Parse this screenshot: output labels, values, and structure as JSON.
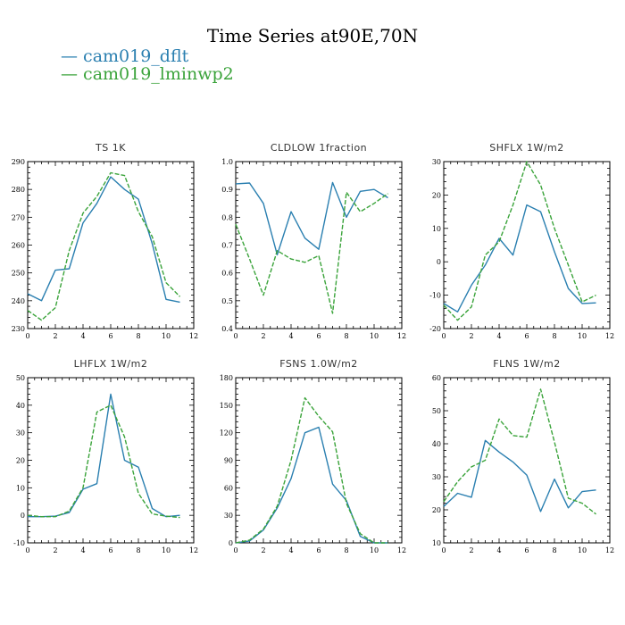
{
  "title": "Time Series at90E,70N",
  "colors": {
    "series1": "#2a7fb0",
    "series2": "#3aa33a"
  },
  "legend": [
    {
      "name": "cam019_dflt",
      "style": "solid"
    },
    {
      "name": "cam019_lminwp2",
      "style": "dashed"
    }
  ],
  "chart_data": [
    {
      "type": "line",
      "title": "TS   1K",
      "x": [
        0,
        1,
        2,
        3,
        4,
        5,
        6,
        7,
        8,
        9,
        10,
        11
      ],
      "xlim": [
        0,
        12
      ],
      "xticks": [
        0,
        2,
        4,
        6,
        8,
        10,
        12
      ],
      "ylim": [
        230,
        290
      ],
      "yticks": [
        230,
        240,
        250,
        260,
        270,
        280,
        290
      ],
      "series": [
        {
          "name": "cam019_dflt",
          "values": [
            242.5,
            240,
            251,
            251.5,
            268,
            275,
            284.5,
            280,
            276.5,
            260.5,
            240.5,
            239.5
          ]
        },
        {
          "name": "cam019_lminwp2",
          "values": [
            236.5,
            233,
            237.5,
            258,
            271.5,
            277.5,
            286,
            285,
            272,
            263,
            246.5,
            241.5
          ]
        }
      ]
    },
    {
      "type": "line",
      "title": "CLDLOW   1fraction",
      "x": [
        0,
        1,
        2,
        3,
        4,
        5,
        6,
        7,
        8,
        9,
        10,
        11
      ],
      "xlim": [
        0,
        12
      ],
      "xticks": [
        0,
        2,
        4,
        6,
        8,
        10,
        12
      ],
      "ylim": [
        0.4,
        1.0
      ],
      "yticks": [
        0.4,
        0.5,
        0.6,
        0.7,
        0.8,
        0.9,
        1.0
      ],
      "series": [
        {
          "name": "cam019_dflt",
          "values": [
            0.92,
            0.923,
            0.85,
            0.665,
            0.82,
            0.725,
            0.685,
            0.925,
            0.8,
            0.893,
            0.9,
            0.87
          ]
        },
        {
          "name": "cam019_lminwp2",
          "values": [
            0.775,
            0.65,
            0.52,
            0.68,
            0.65,
            0.638,
            0.662,
            0.455,
            0.89,
            0.82,
            0.85,
            0.885
          ]
        }
      ]
    },
    {
      "type": "line",
      "title": "SHFLX   1W/m2",
      "x": [
        0,
        1,
        2,
        3,
        4,
        5,
        6,
        7,
        8,
        9,
        10,
        11
      ],
      "xlim": [
        0,
        12
      ],
      "xticks": [
        0,
        2,
        4,
        6,
        8,
        10,
        12
      ],
      "ylim": [
        -20,
        30
      ],
      "yticks": [
        -20,
        -10,
        0,
        10,
        20,
        30
      ],
      "series": [
        {
          "name": "cam019_dflt",
          "values": [
            -12.5,
            -15,
            -7,
            -1,
            7,
            2,
            17,
            15,
            3,
            -8,
            -12.5,
            -12.3
          ]
        },
        {
          "name": "cam019_lminwp2",
          "values": [
            -13,
            -17.5,
            -13.5,
            2,
            6,
            17,
            30,
            23,
            10,
            -1,
            -12,
            -10
          ]
        }
      ]
    },
    {
      "type": "line",
      "title": "LHFLX   1W/m2",
      "x": [
        0,
        1,
        2,
        3,
        4,
        5,
        6,
        7,
        8,
        9,
        10,
        11
      ],
      "xlim": [
        0,
        12
      ],
      "xticks": [
        0,
        2,
        4,
        6,
        8,
        10,
        12
      ],
      "ylim": [
        -10,
        50
      ],
      "yticks": [
        -10,
        0,
        10,
        20,
        30,
        40,
        50
      ],
      "series": [
        {
          "name": "cam019_dflt",
          "values": [
            -0.5,
            -0.5,
            -0.3,
            1,
            9.5,
            11.5,
            44,
            20,
            17.5,
            2.5,
            -0.5,
            0
          ]
        },
        {
          "name": "cam019_lminwp2",
          "values": [
            0,
            -0.5,
            -0.5,
            1.5,
            10,
            37.5,
            40,
            28.5,
            8,
            0.5,
            -0.3,
            -0.8
          ]
        }
      ]
    },
    {
      "type": "line",
      "title": "FSNS   1.0W/m2",
      "x": [
        0,
        1,
        2,
        3,
        4,
        5,
        6,
        7,
        8,
        9,
        10,
        11
      ],
      "xlim": [
        0,
        12
      ],
      "xticks": [
        0,
        2,
        4,
        6,
        8,
        10,
        12
      ],
      "ylim": [
        0,
        180
      ],
      "yticks": [
        0,
        30,
        60,
        90,
        120,
        150,
        180
      ],
      "series": [
        {
          "name": "cam019_dflt",
          "values": [
            0,
            2,
            14,
            38,
            70,
            120,
            126,
            64,
            46,
            7,
            0,
            0
          ]
        },
        {
          "name": "cam019_lminwp2",
          "values": [
            0,
            3,
            15,
            40,
            90,
            158,
            138,
            121,
            43,
            10,
            0,
            0
          ]
        }
      ]
    },
    {
      "type": "line",
      "title": "FLNS   1W/m2",
      "x": [
        0,
        1,
        2,
        3,
        4,
        5,
        6,
        7,
        8,
        9,
        10,
        11
      ],
      "xlim": [
        0,
        12
      ],
      "xticks": [
        0,
        2,
        4,
        6,
        8,
        10,
        12
      ],
      "ylim": [
        10,
        60
      ],
      "yticks": [
        10,
        20,
        30,
        40,
        50,
        60
      ],
      "series": [
        {
          "name": "cam019_dflt",
          "values": [
            21,
            25,
            23.8,
            41,
            37.5,
            34.5,
            30.5,
            19.5,
            29.3,
            20.6,
            25.5,
            26
          ]
        },
        {
          "name": "cam019_lminwp2",
          "values": [
            22.5,
            28.5,
            33,
            35,
            47.5,
            42.5,
            42,
            56.5,
            40.5,
            23.5,
            22,
            18.7
          ]
        }
      ]
    }
  ]
}
